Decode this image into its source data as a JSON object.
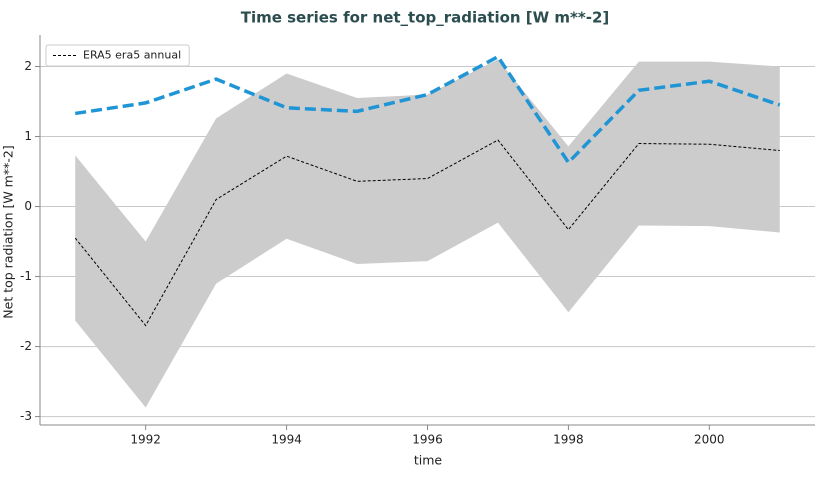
{
  "chart_data": {
    "type": "line",
    "title": "Time series for net_top_radiation [W m**-2]",
    "x_label": "time",
    "y_label": "Net top radiation [W m**-2]",
    "x": [
      1991,
      1992,
      1993,
      1994,
      1995,
      1996,
      1997,
      1998,
      1999,
      2000,
      2001
    ],
    "xlim": [
      1990.5,
      2001.5
    ],
    "xticks": [
      1992,
      1994,
      1996,
      1998,
      2000
    ],
    "ylim": [
      -3.12,
      2.45
    ],
    "yticks": [
      -3,
      -2,
      -1,
      0,
      1,
      2
    ],
    "grid": true,
    "legend": "upper left",
    "band": {
      "color": "#cccccc",
      "upper": [
        0.73,
        -0.5,
        1.26,
        1.9,
        1.55,
        1.6,
        2.1,
        0.86,
        2.07,
        2.07,
        2.0
      ],
      "lower": [
        -1.63,
        -2.87,
        -1.1,
        -0.46,
        -0.82,
        -0.78,
        -0.23,
        -1.51,
        -0.27,
        -0.28,
        -0.37
      ]
    },
    "series": [
      {
        "name": "ERA5 era5 annual",
        "color": "#000000",
        "dash": "3,2",
        "width": 1,
        "values": [
          -0.45,
          -1.7,
          0.1,
          0.72,
          0.36,
          0.4,
          0.95,
          -0.33,
          0.9,
          0.89,
          0.8
        ]
      },
      {
        "color": "#1f95d6",
        "dash": "11,5",
        "width": 3.5,
        "values": [
          1.33,
          1.48,
          1.82,
          1.41,
          1.36,
          1.6,
          2.14,
          0.63,
          1.66,
          1.79,
          1.45
        ]
      }
    ]
  }
}
